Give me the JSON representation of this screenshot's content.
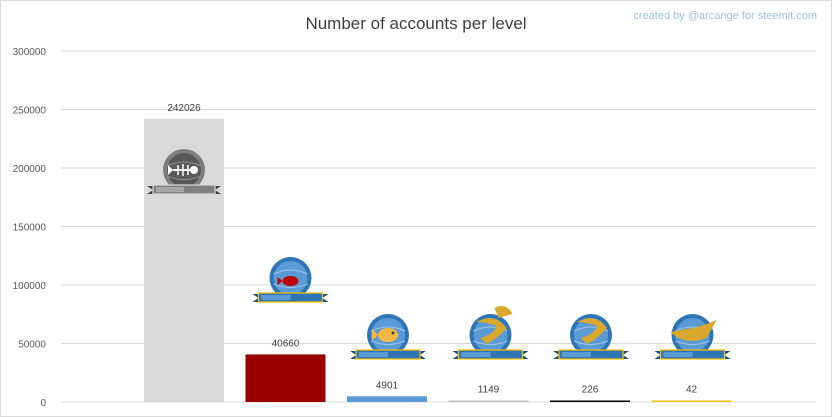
{
  "chart_data": {
    "type": "bar",
    "title": "Number of accounts per level",
    "categories": [
      "",
      "",
      "",
      "",
      "",
      ""
    ],
    "values": [
      242026,
      40660,
      4901,
      1149,
      226,
      42
    ],
    "data_labels": [
      "242026",
      "40660",
      "4901",
      "1149",
      "226",
      "42"
    ],
    "ylim": [
      0,
      300000
    ],
    "yticks": [
      0,
      50000,
      100000,
      150000,
      200000,
      250000,
      300000
    ],
    "ytick_labels": [
      "0",
      "50000",
      "100000",
      "150000",
      "200000",
      "250000",
      "300000"
    ],
    "grid": true,
    "bar_colors": [
      "#d9d9d9",
      "#990000",
      "#5b9bd5",
      "#bfbfbf",
      "#000000",
      "#ffc000"
    ],
    "level_icons": [
      "plankton-icon",
      "minnow-icon",
      "dolphin-small-icon",
      "dolphin-icon",
      "orca-icon",
      "whale-icon"
    ]
  },
  "credit": "created by @arcange for steemit.com"
}
